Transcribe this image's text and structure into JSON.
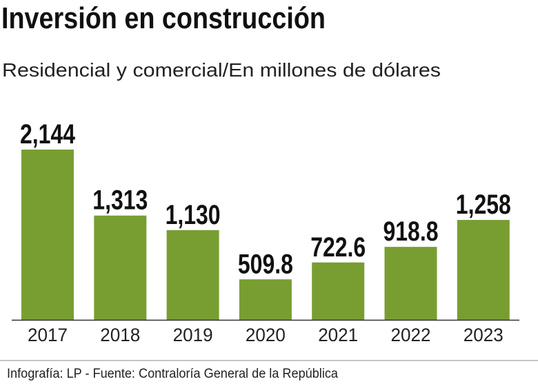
{
  "title": "Inversión en construcción",
  "subtitle": "Residencial y comercial/En millones de dólares",
  "footer": "Infografía: LP - Fuente: Contraloría General de la República",
  "colors": {
    "bar": "#789e32",
    "text": "#111111",
    "axis": "#333333"
  },
  "chart_data": {
    "type": "bar",
    "categories": [
      "2017",
      "2018",
      "2019",
      "2020",
      "2021",
      "2022",
      "2023"
    ],
    "values": [
      2144,
      1313,
      1130,
      509.8,
      722.6,
      918.8,
      1258
    ],
    "labels": [
      "2,144",
      "1,313",
      "1,130",
      "509.8",
      "722.6",
      "918.8",
      "1,258"
    ],
    "title": "Inversión en construcción",
    "subtitle": "Residencial y comercial/En millones de dólares",
    "xlabel": "",
    "ylabel": "",
    "grid": false
  }
}
